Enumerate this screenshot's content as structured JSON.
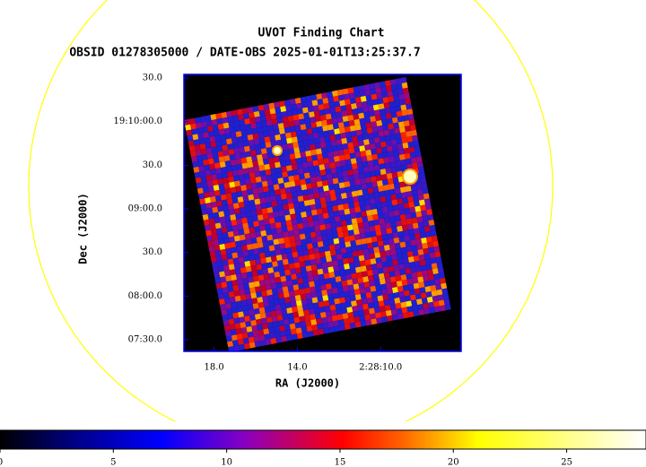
{
  "chart_data": {
    "type": "image",
    "title": "UVOT Finding Chart",
    "subtitle": "OBSID 01278305000 / DATE-OBS 2025-01-01T13:25:37.7",
    "x_label": "RA (J2000)",
    "y_label": "Dec (J2000)",
    "xlim": [
      19.45,
      6.13
    ],
    "xticks": [
      {
        "value": 18,
        "label": "18.0"
      },
      {
        "value": 14,
        "label": "14.0"
      },
      {
        "value": 10,
        "label": "2:28:10.0"
      }
    ],
    "ylim": [
      442,
      632.5
    ],
    "yticks": [
      {
        "value": 630,
        "label": "30.0"
      },
      {
        "value": 600,
        "label": "19:10:00.0"
      },
      {
        "value": 570,
        "label": "30.0"
      },
      {
        "value": 540,
        "label": "09:00.0"
      },
      {
        "value": 510,
        "label": "30.0"
      },
      {
        "value": 480,
        "label": "08:00.0"
      },
      {
        "value": 450,
        "label": "07:30.0"
      }
    ],
    "colorbar": {
      "lim": [
        0,
        28.5
      ],
      "ticks": [
        0,
        5,
        10,
        15,
        20,
        25
      ]
    }
  }
}
